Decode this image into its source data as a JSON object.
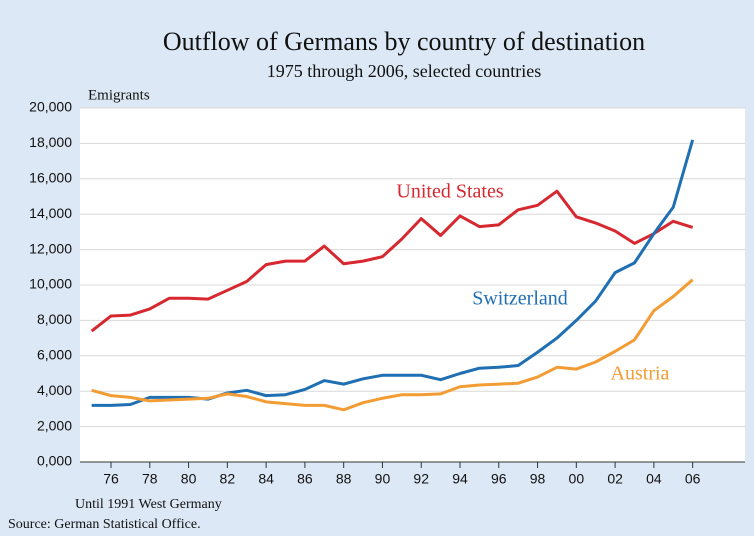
{
  "chart_data": {
    "type": "line",
    "title": "Outflow of Germans by country of destination",
    "subtitle": "1975 through 2006, selected countries",
    "y_label": "Emigrants",
    "notes": [
      "Until 1991 West Germany",
      "Source: German Statistical Office."
    ],
    "x": [
      1975,
      1976,
      1977,
      1978,
      1979,
      1980,
      1981,
      1982,
      1983,
      1984,
      1985,
      1986,
      1987,
      1988,
      1989,
      1990,
      1991,
      1992,
      1993,
      1994,
      1995,
      1996,
      1997,
      1998,
      1999,
      2000,
      2001,
      2002,
      2003,
      2004,
      2005,
      2006
    ],
    "series": [
      {
        "name": "United States",
        "color": "#d7282f",
        "values": [
          7400,
          8250,
          8300,
          8650,
          9250,
          9250,
          9200,
          9700,
          10200,
          11150,
          11350,
          11350,
          12200,
          11200,
          11350,
          11600,
          12600,
          13750,
          12800,
          13900,
          13300,
          13400,
          14250,
          14500,
          15300,
          13850,
          13500,
          13050,
          12350,
          12900,
          13600,
          13250
        ]
      },
      {
        "name": "Switzerland",
        "color": "#1f6fb2",
        "values": [
          3200,
          3200,
          3250,
          3650,
          3650,
          3650,
          3550,
          3900,
          4050,
          3750,
          3800,
          4100,
          4600,
          4400,
          4700,
          4900,
          4900,
          4900,
          4650,
          5000,
          5300,
          5350,
          5450,
          6200,
          7000,
          8000,
          9100,
          10700,
          11250,
          12900,
          14400,
          18200
        ]
      },
      {
        "name": "Austria",
        "color": "#f39c34",
        "values": [
          4050,
          3750,
          3650,
          3450,
          3500,
          3550,
          3600,
          3850,
          3700,
          3400,
          3300,
          3200,
          3200,
          2950,
          3350,
          3600,
          3800,
          3800,
          3850,
          4250,
          4350,
          4400,
          4450,
          4800,
          5350,
          5250,
          5650,
          6250,
          6900,
          8550,
          9350,
          10300
        ]
      }
    ],
    "xlim": [
      1974.4,
      2008.7
    ],
    "xticks": [
      {
        "value": 1976,
        "label": "76"
      },
      {
        "value": 1978,
        "label": "78"
      },
      {
        "value": 1980,
        "label": "80"
      },
      {
        "value": 1982,
        "label": "82"
      },
      {
        "value": 1984,
        "label": "84"
      },
      {
        "value": 1986,
        "label": "86"
      },
      {
        "value": 1988,
        "label": "88"
      },
      {
        "value": 1990,
        "label": "90"
      },
      {
        "value": 1992,
        "label": "92"
      },
      {
        "value": 1994,
        "label": "94"
      },
      {
        "value": 1996,
        "label": "96"
      },
      {
        "value": 1998,
        "label": "98"
      },
      {
        "value": 2000,
        "label": "00"
      },
      {
        "value": 2002,
        "label": "02"
      },
      {
        "value": 2004,
        "label": "04"
      },
      {
        "value": 2006,
        "label": "06"
      }
    ],
    "ylim": [
      0,
      20000
    ],
    "yticks": [
      {
        "value": 0,
        "label": "0,000"
      },
      {
        "value": 2000,
        "label": "2,000"
      },
      {
        "value": 4000,
        "label": "4,000"
      },
      {
        "value": 6000,
        "label": "6,000"
      },
      {
        "value": 8000,
        "label": "8,000"
      },
      {
        "value": 10000,
        "label": "10,000"
      },
      {
        "value": 12000,
        "label": "12,000"
      },
      {
        "value": 14000,
        "label": "14,000"
      },
      {
        "value": 16000,
        "label": "16,000"
      },
      {
        "value": 18000,
        "label": "18,000"
      },
      {
        "value": 20000,
        "label": "20,000"
      }
    ],
    "grid": true
  }
}
